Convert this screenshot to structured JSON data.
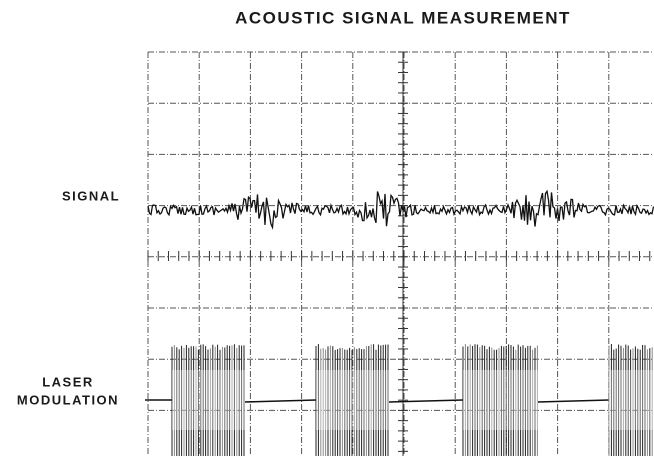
{
  "title": "ACOUSTIC SIGNAL MEASUREMENT",
  "labels": {
    "signal": "SIGNAL",
    "laser": [
      "LASER",
      "MODULATION"
    ]
  }
}
